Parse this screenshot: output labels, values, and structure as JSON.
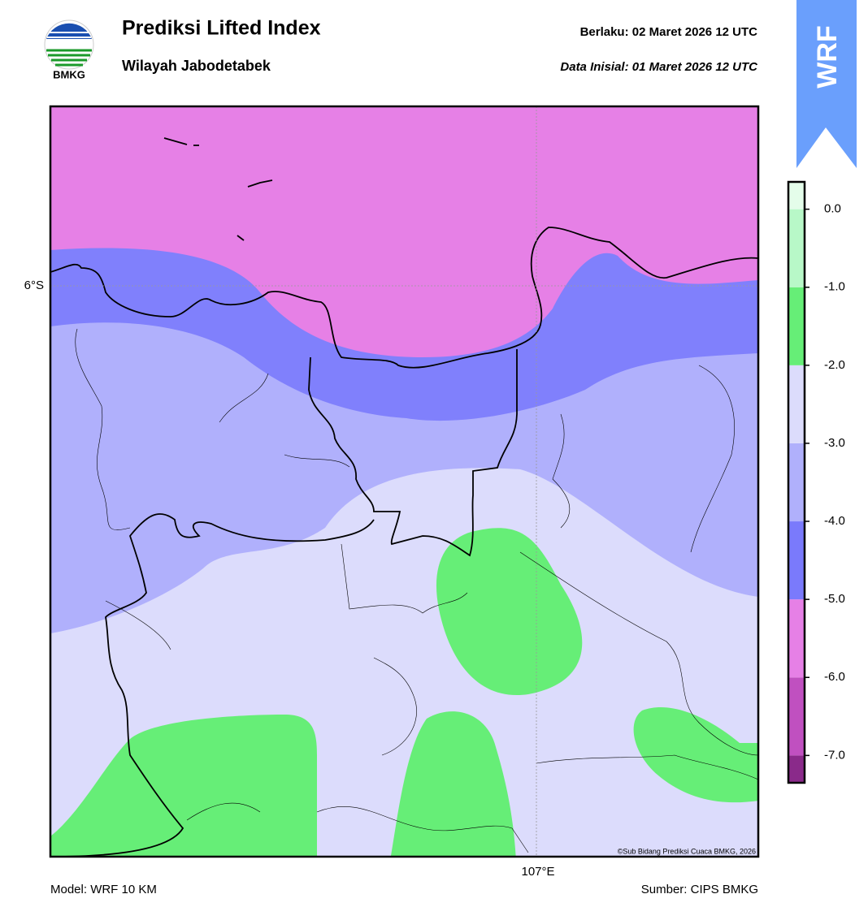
{
  "header": {
    "title": "Prediksi Lifted Index",
    "subtitle": "Wilayah Jabodetabek",
    "valid_label": "Berlaku:  02 Maret 2026 12 UTC",
    "init_label": "Data Inisial:  01 Maret 2026 12 UTC",
    "logo_text": "BMKG",
    "badge": "WRF"
  },
  "map": {
    "lat_label": "6°S",
    "lon_label": "107°E",
    "credit": "©Sub Bidang Prediksi Cuaca BMKG, 2026"
  },
  "colorbar": {
    "lim": [
      -7.35,
      0.35
    ],
    "levels": [
      -7,
      -6,
      -5,
      -4,
      -3,
      -2,
      -1,
      0
    ],
    "colors": [
      "#8a2a8a",
      "#c050c0",
      "#e680e6",
      "#7a7afc",
      "#b0b0fc",
      "#dcdcfc",
      "#66ee77",
      "#b8f8c8",
      "#e4fdea"
    ],
    "ticks": [
      {
        "value": 0,
        "label": "0.0"
      },
      {
        "value": -1,
        "label": "-1.0"
      },
      {
        "value": -2,
        "label": "-2.0"
      },
      {
        "value": -3,
        "label": "-3.0"
      },
      {
        "value": -4,
        "label": "-4.0"
      },
      {
        "value": -5,
        "label": "-5.0"
      },
      {
        "value": -6,
        "label": "-6.0"
      },
      {
        "value": -7,
        "label": "-7.0"
      }
    ]
  },
  "footer": {
    "model": "Model: WRF 10 KM",
    "source": "Sumber: CIPS BMKG"
  }
}
